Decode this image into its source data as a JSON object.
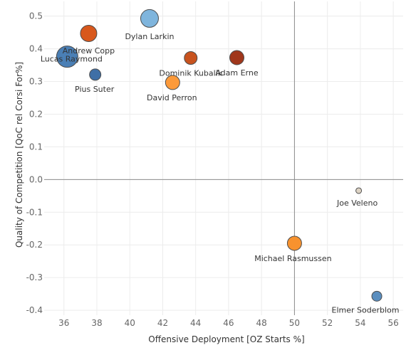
{
  "chart_data": {
    "type": "scatter",
    "xlabel": "Offensive Deployment [OZ Starts %]",
    "ylabel": "Quality of Competition [QoC rel Corsi For%]",
    "xlim": [
      34.8,
      56.6
    ],
    "ylim": [
      -0.415,
      0.545
    ],
    "x_ticks": [
      36,
      38,
      40,
      42,
      44,
      46,
      48,
      50,
      52,
      54,
      56
    ],
    "y_ticks": [
      0.5,
      0.4,
      0.3,
      0.2,
      0.1,
      0.0,
      -0.1,
      -0.2,
      -0.3,
      -0.4
    ],
    "x_tick_labels": [
      "36",
      "38",
      "40",
      "42",
      "44",
      "46",
      "48",
      "50",
      "52",
      "54",
      "56"
    ],
    "y_tick_labels": [
      "0.5",
      "0.4",
      "0.3",
      "0.2",
      "0.1",
      "0.0",
      "-0.1",
      "-0.2",
      "-0.3",
      "-0.4"
    ],
    "reference_lines": {
      "x": 50,
      "y": 0
    },
    "grid": true,
    "points": [
      {
        "name": "Dylan Larkin",
        "x": 41.2,
        "y": 0.493,
        "size": 12.5,
        "color": "#7fb5dd"
      },
      {
        "name": "Andrew Copp",
        "x": 37.5,
        "y": 0.447,
        "size": 11.5,
        "color": "#d8581c"
      },
      {
        "name": "Lucas Raymond",
        "x": 36.2,
        "y": 0.376,
        "size": 15,
        "color": "#4a7fb5"
      },
      {
        "name": "Pius Suter",
        "x": 37.9,
        "y": 0.321,
        "size": 8,
        "color": "#3f6fa6"
      },
      {
        "name": "Dominik Kubalik",
        "x": 43.7,
        "y": 0.372,
        "size": 9,
        "color": "#c8531e"
      },
      {
        "name": "Adam Erne",
        "x": 46.5,
        "y": 0.373,
        "size": 10,
        "color": "#a0371b"
      },
      {
        "name": "David Perron",
        "x": 42.6,
        "y": 0.297,
        "size": 10,
        "color": "#fc9a3a"
      },
      {
        "name": "Joe Veleno",
        "x": 53.9,
        "y": -0.034,
        "size": 4,
        "color": "#ddd3c4"
      },
      {
        "name": "Michael Rasmussen",
        "x": 50.0,
        "y": -0.195,
        "size": 10,
        "color": "#f7922e"
      },
      {
        "name": "Elmer Soderblom",
        "x": 55.0,
        "y": -0.357,
        "size": 7,
        "color": "#5a8ebf"
      }
    ]
  }
}
